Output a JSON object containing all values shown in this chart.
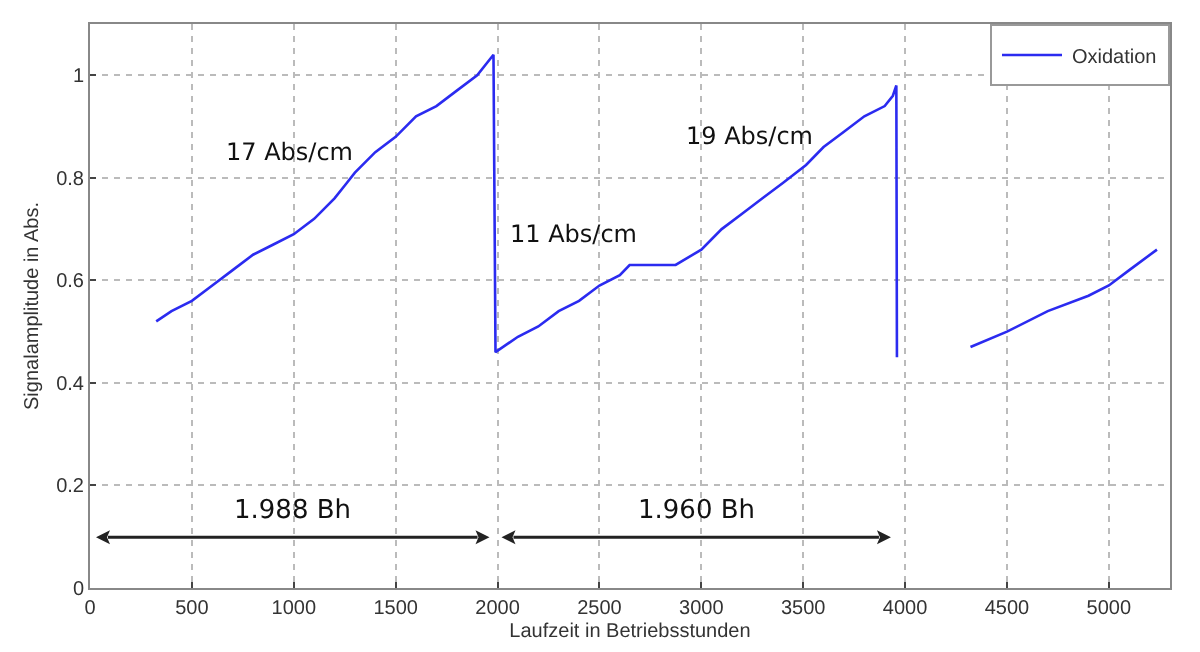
{
  "chart_data": {
    "type": "line",
    "xlabel": "Laufzeit in Betriebsstunden",
    "ylabel": "Signalamplitude in Abs.",
    "x": [
      325,
      400,
      500,
      600,
      700,
      800,
      900,
      1000,
      1100,
      1200,
      1260,
      1300,
      1400,
      1500,
      1600,
      1700,
      1800,
      1900,
      1980,
      1990,
      2100,
      2200,
      2300,
      2400,
      2500,
      2600,
      2648,
      2874,
      3000,
      3100,
      3200,
      3300,
      3400,
      3514,
      3600,
      3700,
      3800,
      3900,
      3940,
      3957,
      3960,
      4100,
      4321,
      4500,
      4700,
      4900,
      5000,
      5100,
      5236
    ],
    "series": [
      {
        "name": "Oxidation",
        "color": "#2b2bf0",
        "values": [
          0.52,
          0.54,
          0.56,
          0.59,
          0.62,
          0.65,
          0.67,
          0.69,
          0.72,
          0.76,
          0.79,
          0.81,
          0.85,
          0.88,
          0.92,
          0.94,
          0.97,
          1.0,
          1.04,
          0.46,
          0.49,
          0.51,
          0.54,
          0.56,
          0.59,
          0.61,
          0.63,
          0.63,
          0.66,
          0.7,
          0.73,
          0.76,
          0.79,
          0.825,
          0.86,
          0.89,
          0.92,
          0.94,
          0.96,
          0.98,
          0.45,
          null,
          0.47,
          0.5,
          0.54,
          0.57,
          0.59,
          0.62,
          0.66
        ]
      }
    ],
    "xlim": [
      0,
      5300
    ],
    "xticks": [
      0,
      500,
      1000,
      1500,
      2000,
      2500,
      3000,
      3500,
      4000,
      4500,
      5000
    ],
    "ylim": [
      0,
      1.1
    ],
    "yticks": [
      0,
      0.2,
      0.4,
      0.6,
      0.8,
      1
    ],
    "grid": true,
    "legend": "top right",
    "marker": "none",
    "line_style": "solid",
    "annotations": [
      {
        "text": "17 Abs/cm",
        "x": 1260,
        "y": 0.79
      },
      {
        "text": "11 Abs/cm",
        "x": 2648,
        "y": 0.63
      },
      {
        "text": "19 Abs/cm",
        "x": 3514,
        "y": 0.825
      },
      "1.988 Bh",
      "1.960 Bh"
    ]
  }
}
